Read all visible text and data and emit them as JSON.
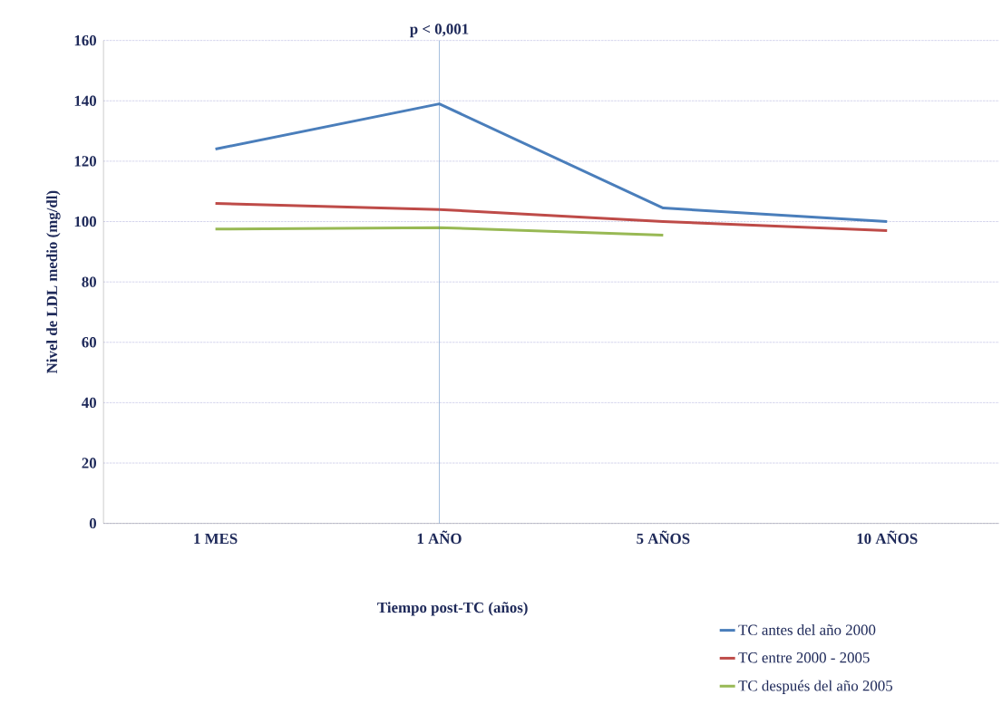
{
  "chart_data": {
    "type": "line",
    "xlabel": "Tiempo post-TC (años)",
    "ylabel": "Nivel de LDL  medio (mg/dl)",
    "categories": [
      "1 MES",
      "1 AÑO",
      "5 AÑOS",
      "10 AÑOS"
    ],
    "series": [
      {
        "name": "TC antes del año 2000",
        "color": "#4a7ebb",
        "values": [
          124,
          139,
          104.5,
          100
        ]
      },
      {
        "name": "TC entre 2000 - 2005",
        "color": "#be4b48",
        "values": [
          106,
          104,
          100,
          97
        ]
      },
      {
        "name": "TC después del año 2005",
        "color": "#98b954",
        "values": [
          97.5,
          98,
          95.5,
          null
        ]
      }
    ],
    "ylim": [
      0,
      160
    ],
    "yticks": [
      0,
      20,
      40,
      60,
      80,
      100,
      120,
      140,
      160
    ],
    "ref_lines": [
      {
        "axis": "x",
        "value": "1 AÑO",
        "label": "p < 0,001",
        "color": "#4a7ebb"
      }
    ],
    "grid": "y",
    "legend": "bottom right",
    "marker": "none",
    "line_style": "solid"
  }
}
